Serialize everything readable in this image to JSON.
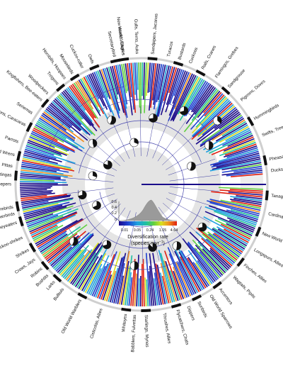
{
  "legend": {
    "title": "Diversification rate",
    "unit": "(species myr",
    "unit_exp": "−1",
    "unit_close": ")",
    "scale_ticks": [
      "0.01",
      "0.05",
      "0.24",
      "1.05",
      "4.64"
    ],
    "density_ticks": [
      "0.6",
      "0.4",
      "0.2",
      "0"
    ],
    "colors": [
      "#1a0a8a",
      "#1d3fd0",
      "#1fa0e0",
      "#20c0a0",
      "#60d040",
      "#d8e020",
      "#f09020",
      "#e02010"
    ]
  },
  "clade_labels": [
    {
      "text": "Secretarybird",
      "angle": 258
    },
    {
      "text": "Hawks, Eagles",
      "angle": 262
    },
    {
      "text": "Owls",
      "angle": 248
    },
    {
      "text": "Cuckoo-roller",
      "angle": 243
    },
    {
      "text": "Mousebirds",
      "angle": 238
    },
    {
      "text": "Hornbills, Hoopoes",
      "angle": 234
    },
    {
      "text": "Trogons",
      "angle": 230
    },
    {
      "text": "Woodpeckers",
      "angle": 224
    },
    {
      "text": "Kingfishers, Bee-eaters",
      "angle": 220
    },
    {
      "text": "Seriemas",
      "angle": 213
    },
    {
      "text": "Falcons, Caracaras",
      "angle": 207
    },
    {
      "text": "Parrots",
      "angle": 199
    },
    {
      "text": "New Zealand Wrens",
      "angle": 193
    },
    {
      "text": "Pittas",
      "angle": 188
    },
    {
      "text": "Cotingas",
      "angle": 184
    },
    {
      "text": "Woodcreepers",
      "angle": 180
    },
    {
      "text": "Lyrebirds",
      "angle": 170
    },
    {
      "text": "Bowerbirds",
      "angle": 167
    },
    {
      "text": "Honeyeaters",
      "angle": 163
    },
    {
      "text": "Cuckoo-shrikes",
      "angle": 156
    },
    {
      "text": "Shrikes",
      "angle": 150
    },
    {
      "text": "Crows, Jays",
      "angle": 145
    },
    {
      "text": "Robins",
      "angle": 140
    },
    {
      "text": "Bushtits",
      "angle": 136
    },
    {
      "text": "Larks",
      "angle": 132
    },
    {
      "text": "Bulbuls",
      "angle": 127
    },
    {
      "text": "Old World Warblers",
      "angle": 118
    },
    {
      "text": "Cisticolas, Allies",
      "angle": 108
    },
    {
      "text": "Whiteyes",
      "angle": 97
    },
    {
      "text": "Babblers, Fulvettas",
      "angle": 93
    },
    {
      "text": "Starlings, Mynas",
      "angle": 88
    },
    {
      "text": "Thrushes, Allies",
      "angle": 80
    },
    {
      "text": "Flycatchers, Chats",
      "angle": 74
    },
    {
      "text": "Dippers",
      "angle": 69
    },
    {
      "text": "Sunbirds",
      "angle": 64
    },
    {
      "text": "Old World Sparrows",
      "angle": 58
    },
    {
      "text": "Accentors",
      "angle": 53
    },
    {
      "text": "Wagtails, Pipits",
      "angle": 45
    },
    {
      "text": "Finches, Allies",
      "angle": 38
    },
    {
      "text": "Longspurs, Allies",
      "angle": 30
    },
    {
      "text": "New World Warblers",
      "angle": 22
    },
    {
      "text": "Cardinals, Allies",
      "angle": 13
    },
    {
      "text": "Tanagers",
      "angle": 5
    },
    {
      "text": "Ducks, Geese",
      "angle": -6
    },
    {
      "text": "Pheasants, Grouse",
      "angle": -11
    },
    {
      "text": "Swifts, Treeswifts",
      "angle": -22
    },
    {
      "text": "Hummingbirds",
      "angle": -30
    },
    {
      "text": "Pigeons, Doves",
      "angle": -40
    },
    {
      "text": "Sandgrouse",
      "angle": -48
    },
    {
      "text": "Flamingos, Grebes",
      "angle": -55
    },
    {
      "text": "Rails, Cranes",
      "angle": -62
    },
    {
      "text": "Cuckoos",
      "angle": -68
    },
    {
      "text": "Bustards",
      "angle": -73
    },
    {
      "text": "Turacos",
      "angle": -78
    },
    {
      "text": "Sandpipers, Jacanas",
      "angle": -85
    },
    {
      "text": "Gulls, Terns, Auks",
      "angle": -92
    },
    {
      "text": "New World Vultures",
      "angle": -98
    }
  ]
}
